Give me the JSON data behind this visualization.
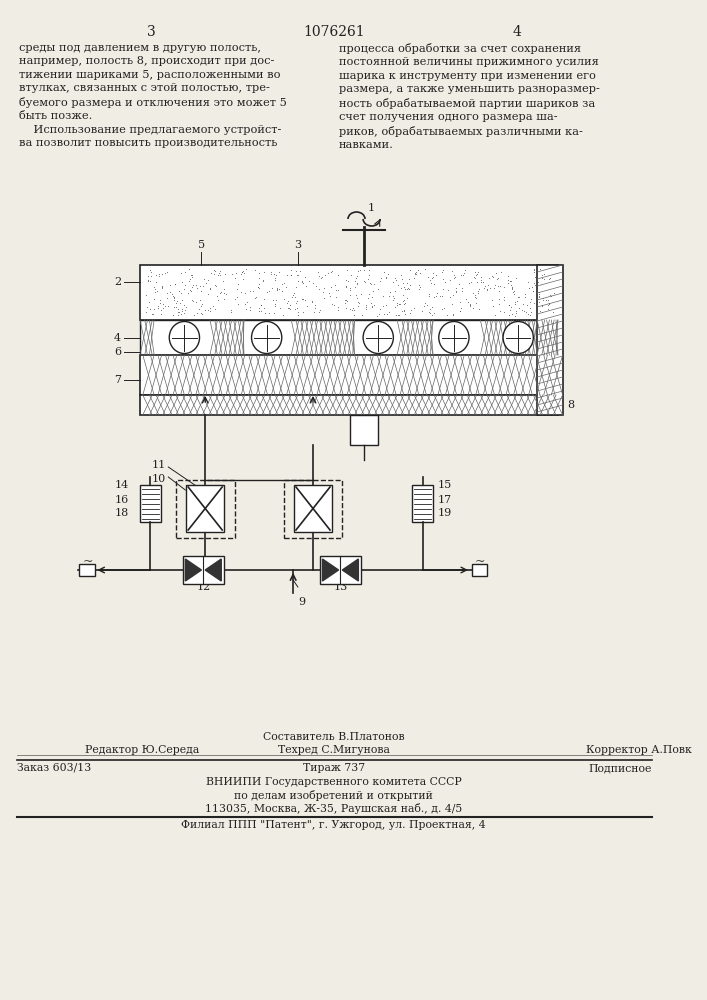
{
  "bg_color": "#f0ede4",
  "page_number_left": "3",
  "page_number_center": "1076261",
  "page_number_right": "4",
  "text_left": "среды под давлением в другую полость,\nнапример, полость 8, происходит при дос-\nтижении шариками 5, расположенными во\nвтулках, связанных с этой полостью, тре-\nбуемого размера и отключения это может 5\nбыть позже.\n    Использование предлагаемого устройст-\nва позволит повысить производительность",
  "text_right": "процесса обработки за счет сохранения\nпостоянной величины прижимного усилия\nшарика к инструменту при изменении его\nразмера, а также уменьшить разноразмер-\nность обрабатываемой партии шариков за\nсчет получения одного размера ша-\nриков, обрабатываемых различными ка-\nнавками.",
  "footer_line1_col1": "Редактор Ю.Середа",
  "footer_line1_col2a": "Составитель В.Платонов",
  "footer_line1_col2b": "Техред С.Мигунова",
  "footer_line1_col3": "Корректор А.Повк",
  "footer_line2_col1": "Заказ 603/13",
  "footer_line2_col2": "Тираж 737",
  "footer_line2_col3": "Подписное",
  "footer_line3": "ВНИИПИ Государственного комитета СССР",
  "footer_line4": "по делам изобретений и открытий",
  "footer_line5": "113035, Москва, Ж-35, Раушская наб., д. 4/5",
  "footer_line6": "Филиал ППП \"Патент\", г. Ужгород, ул. Проектная, 4",
  "lc": "#222222",
  "hatch_color": "#555555"
}
